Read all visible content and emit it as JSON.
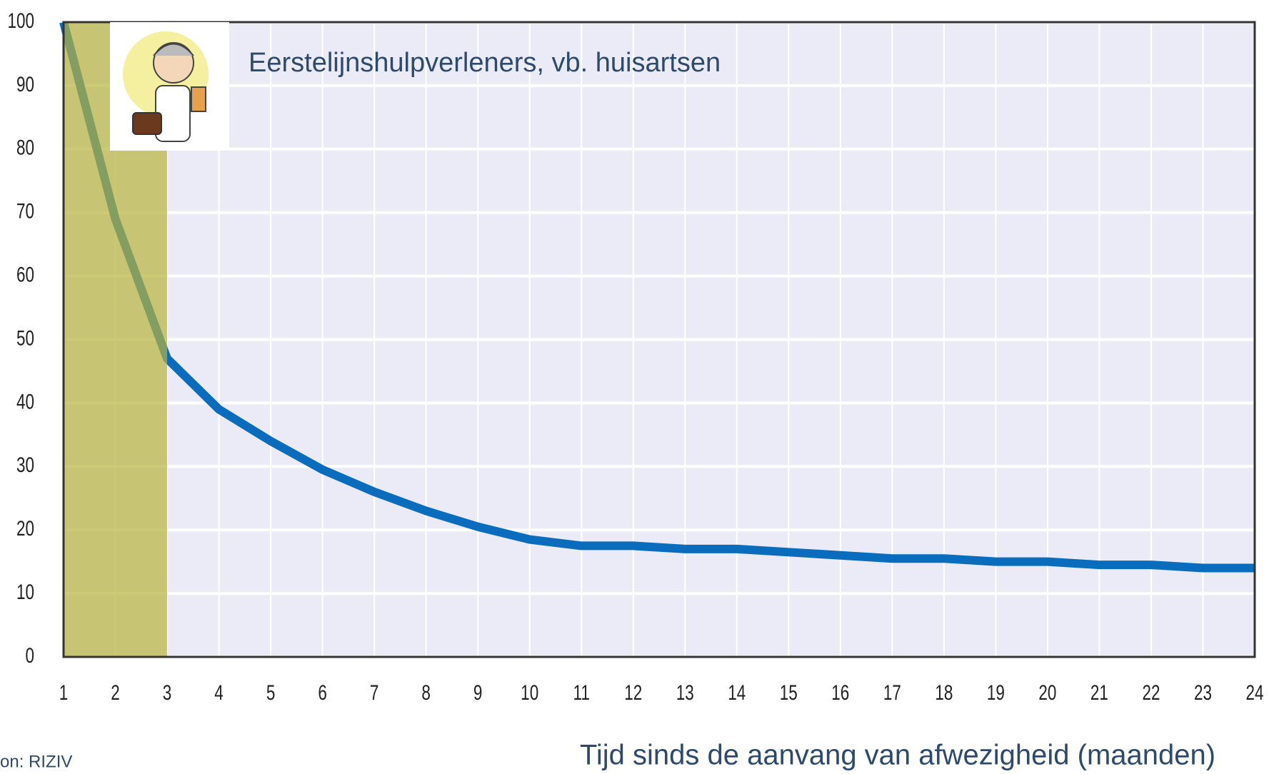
{
  "chart_data": {
    "type": "line",
    "annotation": "Eerstelijnshulpverleners, vb. huisartsen",
    "x_label": "Tijd sinds de aanvang van afwezigheid (maanden)",
    "source": "on: RIZIV",
    "x": [
      1,
      2,
      3,
      4,
      5,
      6,
      7,
      8,
      9,
      10,
      11,
      12,
      13,
      14,
      15,
      16,
      17,
      18,
      19,
      20,
      21,
      22,
      23,
      24
    ],
    "series": [
      {
        "color": "#0a6cbd",
        "values": [
          100,
          69,
          47,
          39,
          34,
          29.5,
          26,
          23,
          20.5,
          18.5,
          17.5,
          17.5,
          17,
          17,
          16.5,
          16,
          15.5,
          15.5,
          15,
          15,
          14.5,
          14.5,
          14,
          14
        ]
      }
    ],
    "xlim": [
      1,
      24
    ],
    "xticks": [
      1,
      2,
      3,
      4,
      5,
      6,
      7,
      8,
      9,
      10,
      11,
      12,
      13,
      14,
      15,
      16,
      17,
      18,
      19,
      20,
      21,
      22,
      23,
      24
    ],
    "ylim": [
      0,
      100
    ],
    "yticks": [
      0,
      10,
      20,
      30,
      40,
      50,
      60,
      70,
      80,
      90,
      100
    ],
    "grid": true,
    "shaded_x": [
      1,
      3
    ],
    "shade_color": "#b8b43a"
  }
}
